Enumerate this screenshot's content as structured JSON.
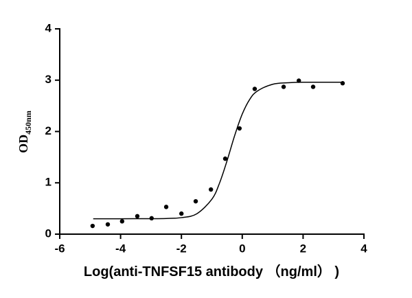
{
  "chart_data": {
    "type": "scatter",
    "x_label": "Log(anti-TNFSF15 antibody （ng/ml） )",
    "y_label": "OD",
    "y_label_subscript": "450nm",
    "x": [
      -4.92,
      -4.42,
      -3.95,
      -3.45,
      -2.98,
      -2.5,
      -2.0,
      -1.53,
      -1.03,
      -0.56,
      -0.09,
      0.41,
      1.36,
      1.86,
      2.33,
      3.3
    ],
    "values": [
      0.16,
      0.19,
      0.25,
      0.35,
      0.31,
      0.53,
      0.4,
      0.64,
      0.87,
      1.47,
      2.06,
      2.83,
      2.87,
      2.99,
      2.87,
      2.94
    ],
    "color": "#000000",
    "fit": {
      "x": [
        -4.9,
        -4,
        -3,
        -2.5,
        -2,
        -1.5,
        -1,
        -0.75,
        -0.5,
        -0.25,
        0,
        0.25,
        0.5,
        1,
        1.5,
        2,
        3.3
      ],
      "values": [
        0.3,
        0.3,
        0.301,
        0.305,
        0.322,
        0.395,
        0.68,
        0.99,
        1.43,
        1.92,
        2.34,
        2.63,
        2.79,
        2.92,
        2.95,
        2.96,
        2.96
      ]
    },
    "xlim": [
      -6,
      4
    ],
    "xticks": [
      -6,
      -4,
      -2,
      0,
      2,
      4
    ],
    "ylim": [
      0,
      4
    ],
    "yticks": [
      0,
      1,
      2,
      3,
      4
    ]
  }
}
